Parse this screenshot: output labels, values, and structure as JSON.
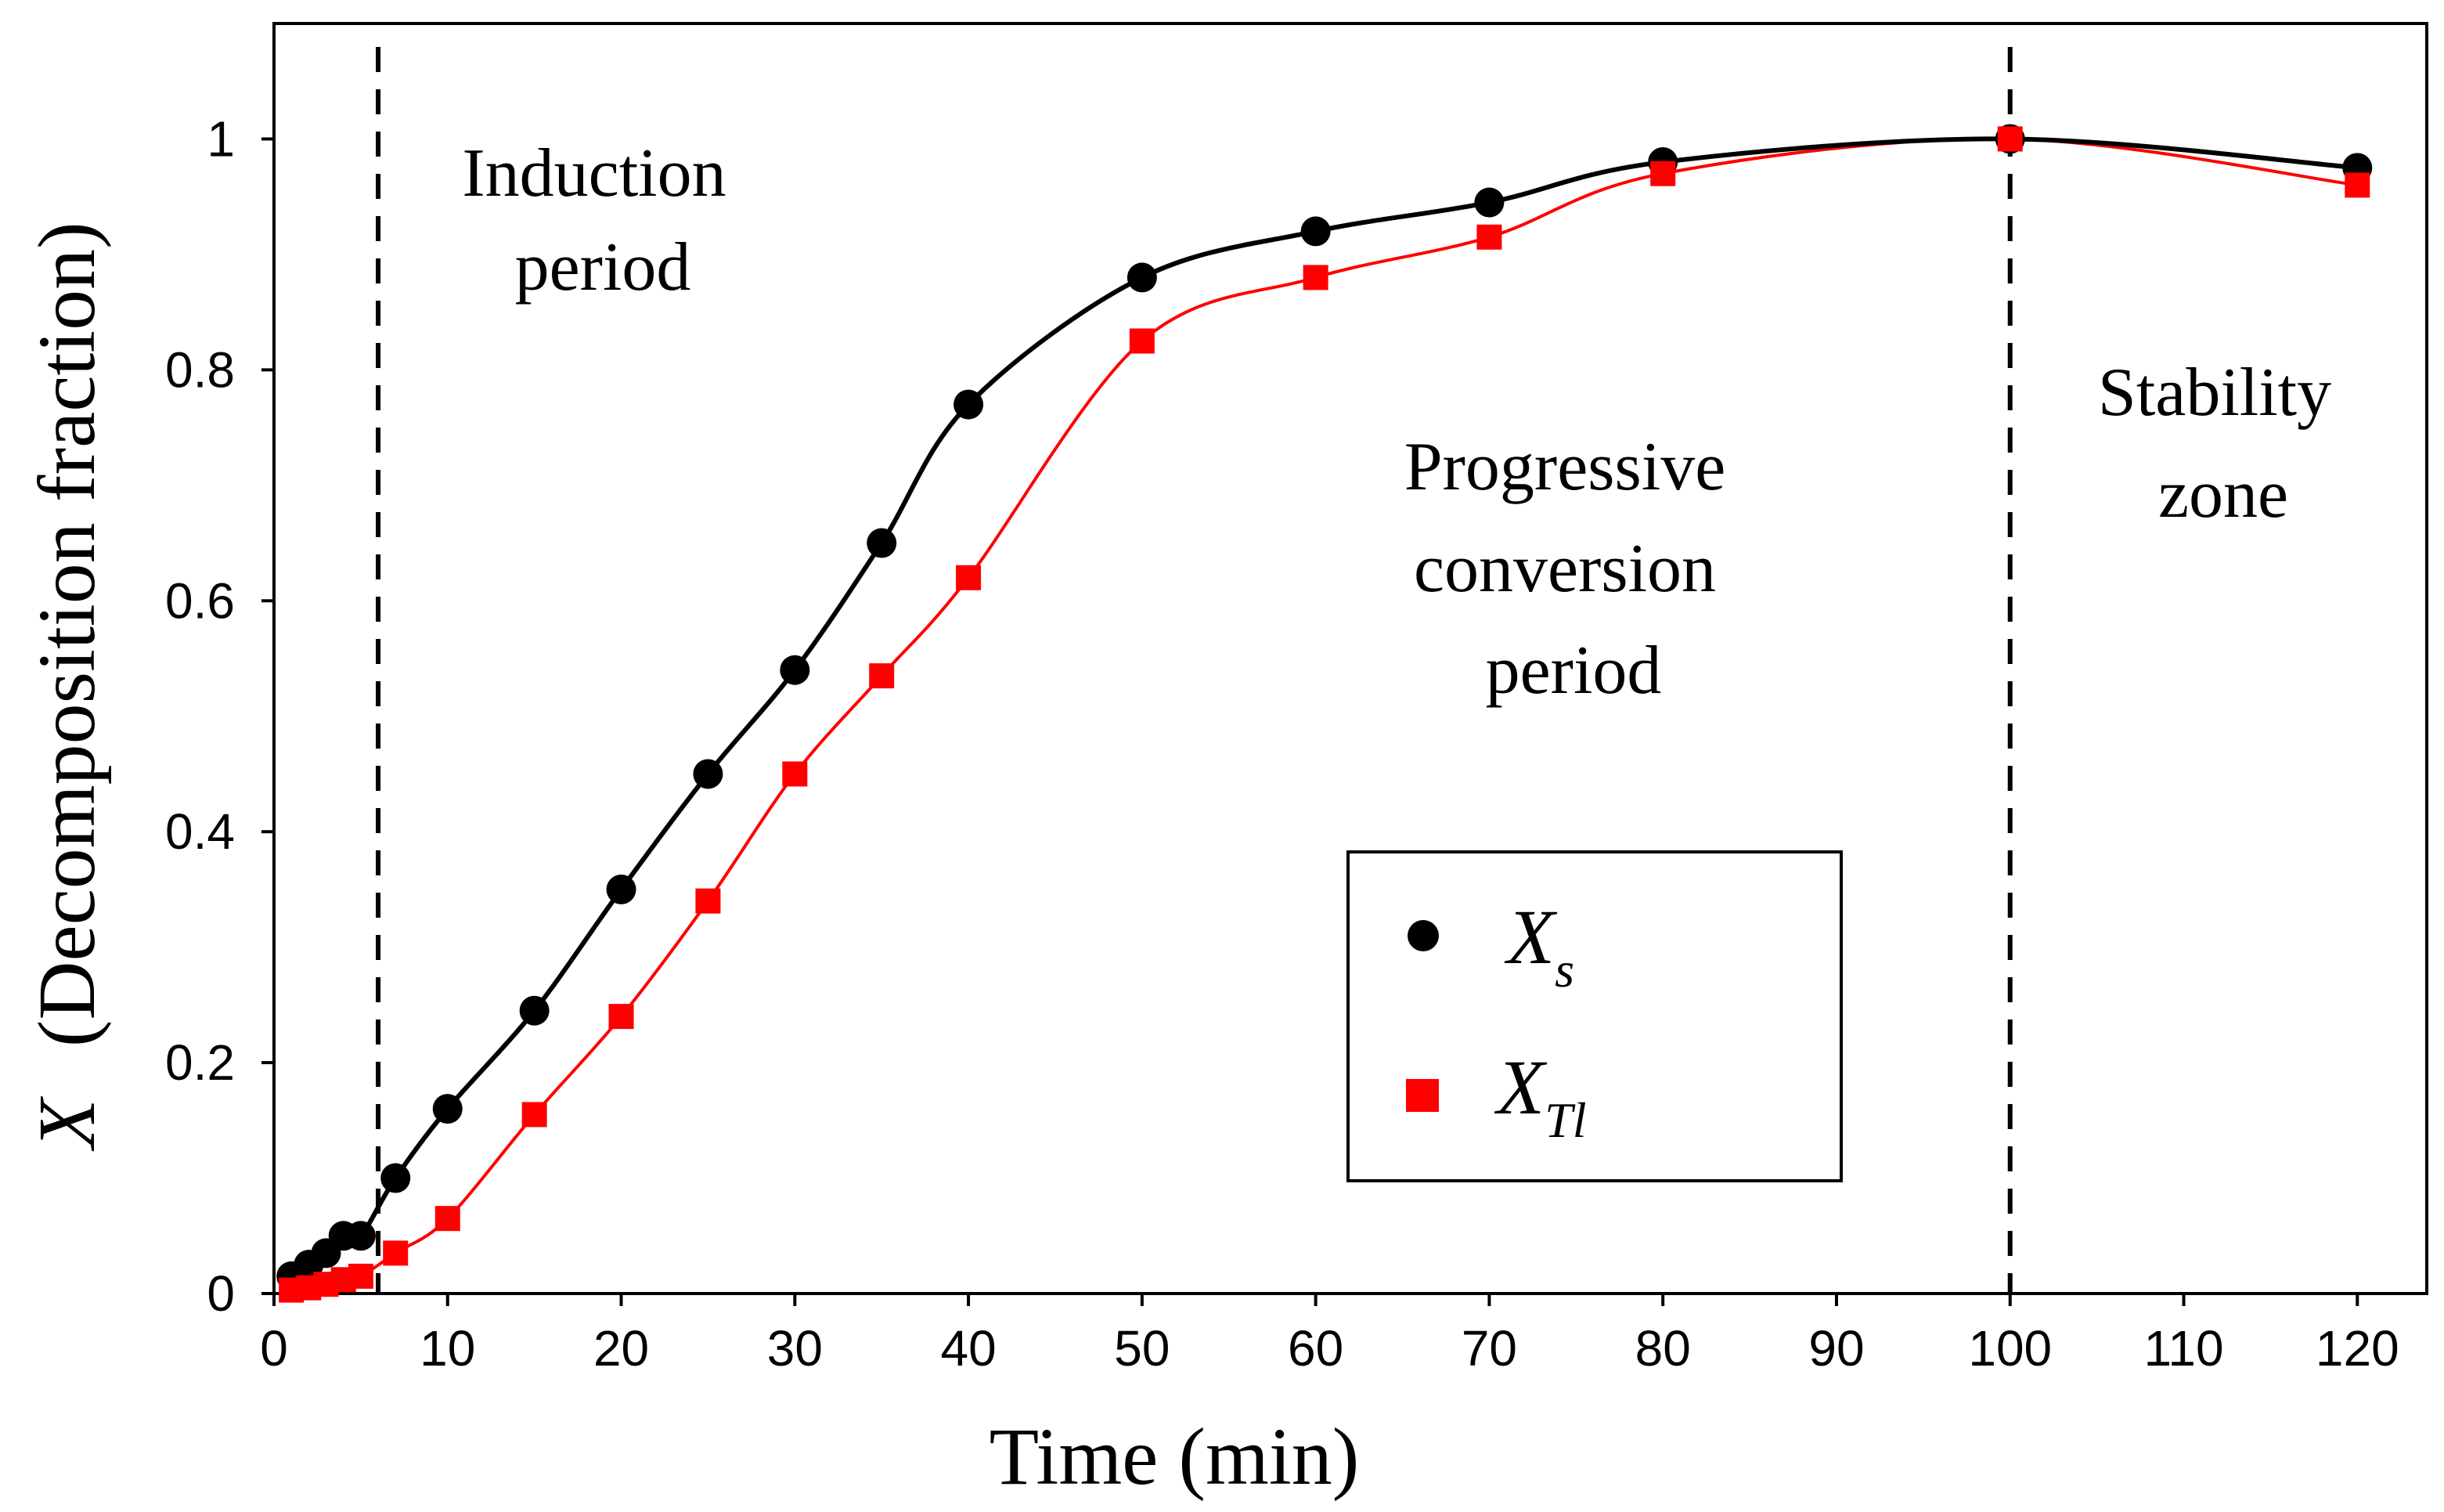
{
  "chart_data": {
    "type": "line",
    "title": "",
    "xlabel": "Time (min)",
    "ylabel_var": "X",
    "ylabel_rest": "(Decomposition fraction)",
    "xlim": [
      0,
      124
    ],
    "ylim": [
      0,
      1.1
    ],
    "xticks": [
      0,
      10,
      20,
      30,
      40,
      50,
      60,
      70,
      80,
      90,
      100,
      110,
      120
    ],
    "yticks": [
      0,
      0.2,
      0.4,
      0.6,
      0.8,
      1
    ],
    "ytick_labels": [
      "0",
      "0.2",
      "0.4",
      "0.6",
      "0.8",
      "1"
    ],
    "vertical_lines": [
      6,
      100
    ],
    "annotations": [
      {
        "id": "induction",
        "lines": [
          "Induction",
          "period"
        ]
      },
      {
        "id": "progressive",
        "lines": [
          "Progressive",
          "conversion",
          "period"
        ]
      },
      {
        "id": "stability",
        "lines": [
          "Stability",
          "zone"
        ]
      }
    ],
    "legend": {
      "position": "center-right",
      "entries": [
        {
          "main": "X",
          "sub": "s"
        },
        {
          "main": "X",
          "sub": "Tl"
        }
      ]
    },
    "series": [
      {
        "name": "Xs",
        "color": "#000000",
        "marker": "circle",
        "x": [
          1,
          2,
          3,
          4,
          5,
          7,
          10,
          15,
          20,
          25,
          30,
          35,
          40,
          50,
          60,
          70,
          80,
          100,
          120
        ],
        "values": [
          0.015,
          0.025,
          0.035,
          0.05,
          0.05,
          0.1,
          0.16,
          0.245,
          0.35,
          0.45,
          0.54,
          0.65,
          0.77,
          0.88,
          0.92,
          0.945,
          0.98,
          1.0,
          0.975
        ]
      },
      {
        "name": "XTl",
        "color": "#ff0000",
        "marker": "square",
        "x": [
          1,
          2,
          3,
          4,
          5,
          7,
          10,
          15,
          20,
          25,
          30,
          35,
          40,
          50,
          60,
          70,
          80,
          100,
          120
        ],
        "values": [
          0.003,
          0.005,
          0.008,
          0.012,
          0.015,
          0.035,
          0.065,
          0.155,
          0.24,
          0.34,
          0.45,
          0.535,
          0.62,
          0.825,
          0.88,
          0.915,
          0.97,
          1.0,
          0.96
        ]
      }
    ]
  }
}
